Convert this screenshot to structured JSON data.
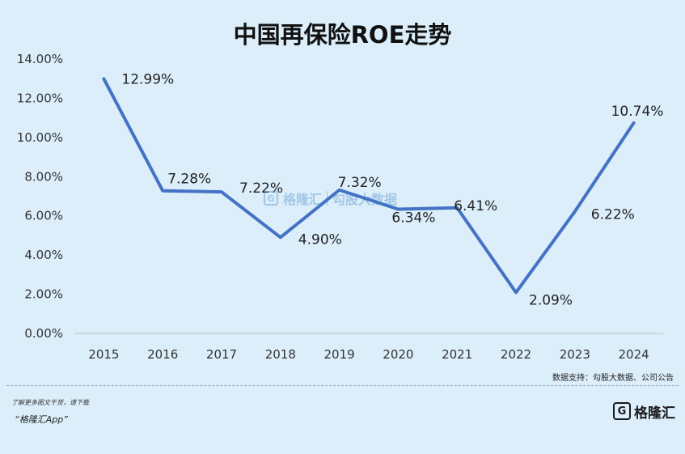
{
  "chart_data": {
    "type": "line",
    "title": "中国再保险ROE走势",
    "categories": [
      "2015",
      "2016",
      "2017",
      "2018",
      "2019",
      "2020",
      "2021",
      "2022",
      "2023",
      "2024"
    ],
    "values": [
      12.99,
      7.28,
      7.22,
      4.9,
      7.32,
      6.34,
      6.41,
      2.09,
      6.22,
      10.74
    ],
    "data_labels": [
      "12.99%",
      "7.28%",
      "7.22%",
      "4.90%",
      "7.32%",
      "6.34%",
      "6.41%",
      "2.09%",
      "6.22%",
      "10.74%"
    ],
    "ylim": [
      0,
      14
    ],
    "yticks": [
      "0.00%",
      "2.00%",
      "4.00%",
      "6.00%",
      "8.00%",
      "10.00%",
      "12.00%",
      "14.00%"
    ],
    "grid": false,
    "line_color": "#4472c4"
  },
  "footer": {
    "source": "数据支持：勾股大数据、公司公告",
    "promo_line1": "了解更多图文干货，请下载",
    "promo_line2": "“格隆汇App”",
    "brand_mark": "G",
    "brand_name": "格隆汇"
  },
  "watermark": {
    "mark": "G",
    "left_text": "格隆汇",
    "right_text": "勾股大数据"
  }
}
